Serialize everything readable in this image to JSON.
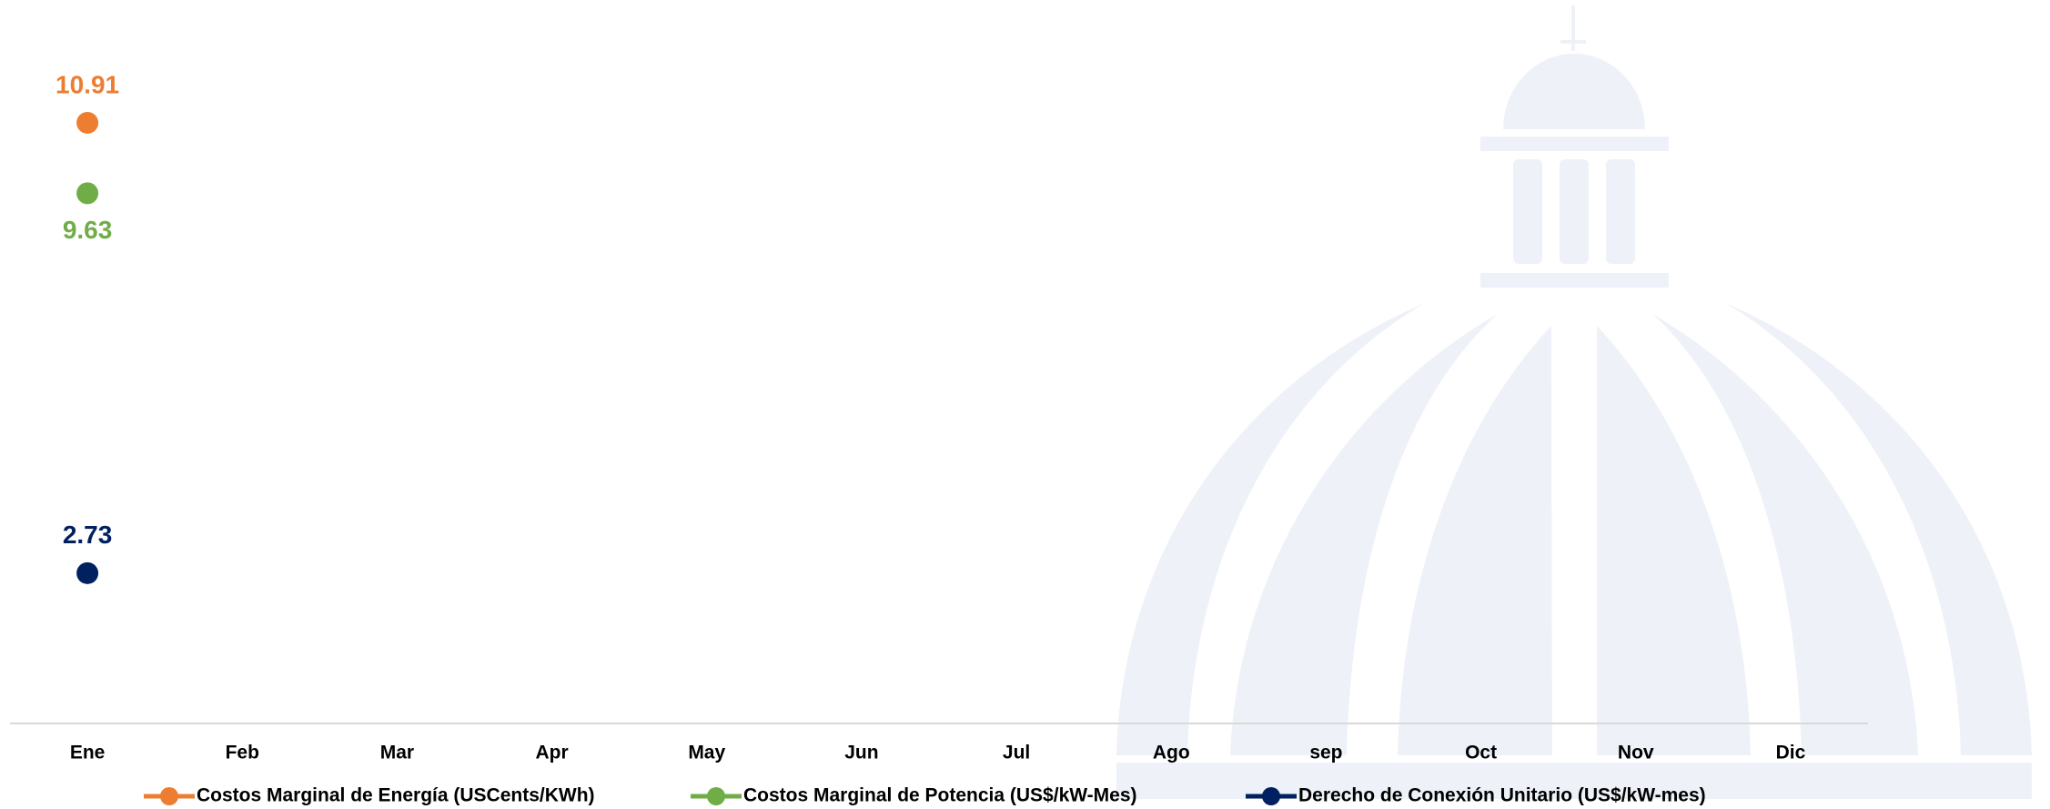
{
  "chart_data": {
    "type": "line",
    "categories": [
      "Ene",
      "Feb",
      "Mar",
      "Apr",
      "May",
      "Jun",
      "Jul",
      "Ago",
      "sep",
      "Oct",
      "Nov",
      "Dic"
    ],
    "series": [
      {
        "name": "Costos Marginal de Energía (USCents/KWh)",
        "color": "#ED7D31",
        "values": [
          10.91,
          null,
          null,
          null,
          null,
          null,
          null,
          null,
          null,
          null,
          null,
          null
        ]
      },
      {
        "name": "Costos Marginal de Potencia  (US$/kW-Mes)",
        "color": "#70AD47",
        "values": [
          9.63,
          null,
          null,
          null,
          null,
          null,
          null,
          null,
          null,
          null,
          null,
          null
        ]
      },
      {
        "name": "Derecho de Conexión Unitario (US$/kW-mes)",
        "color": "#002060",
        "values": [
          2.73,
          null,
          null,
          null,
          null,
          null,
          null,
          null,
          null,
          null,
          null,
          null
        ]
      }
    ],
    "ylim": [
      0,
      12
    ],
    "legend": "bottom"
  }
}
